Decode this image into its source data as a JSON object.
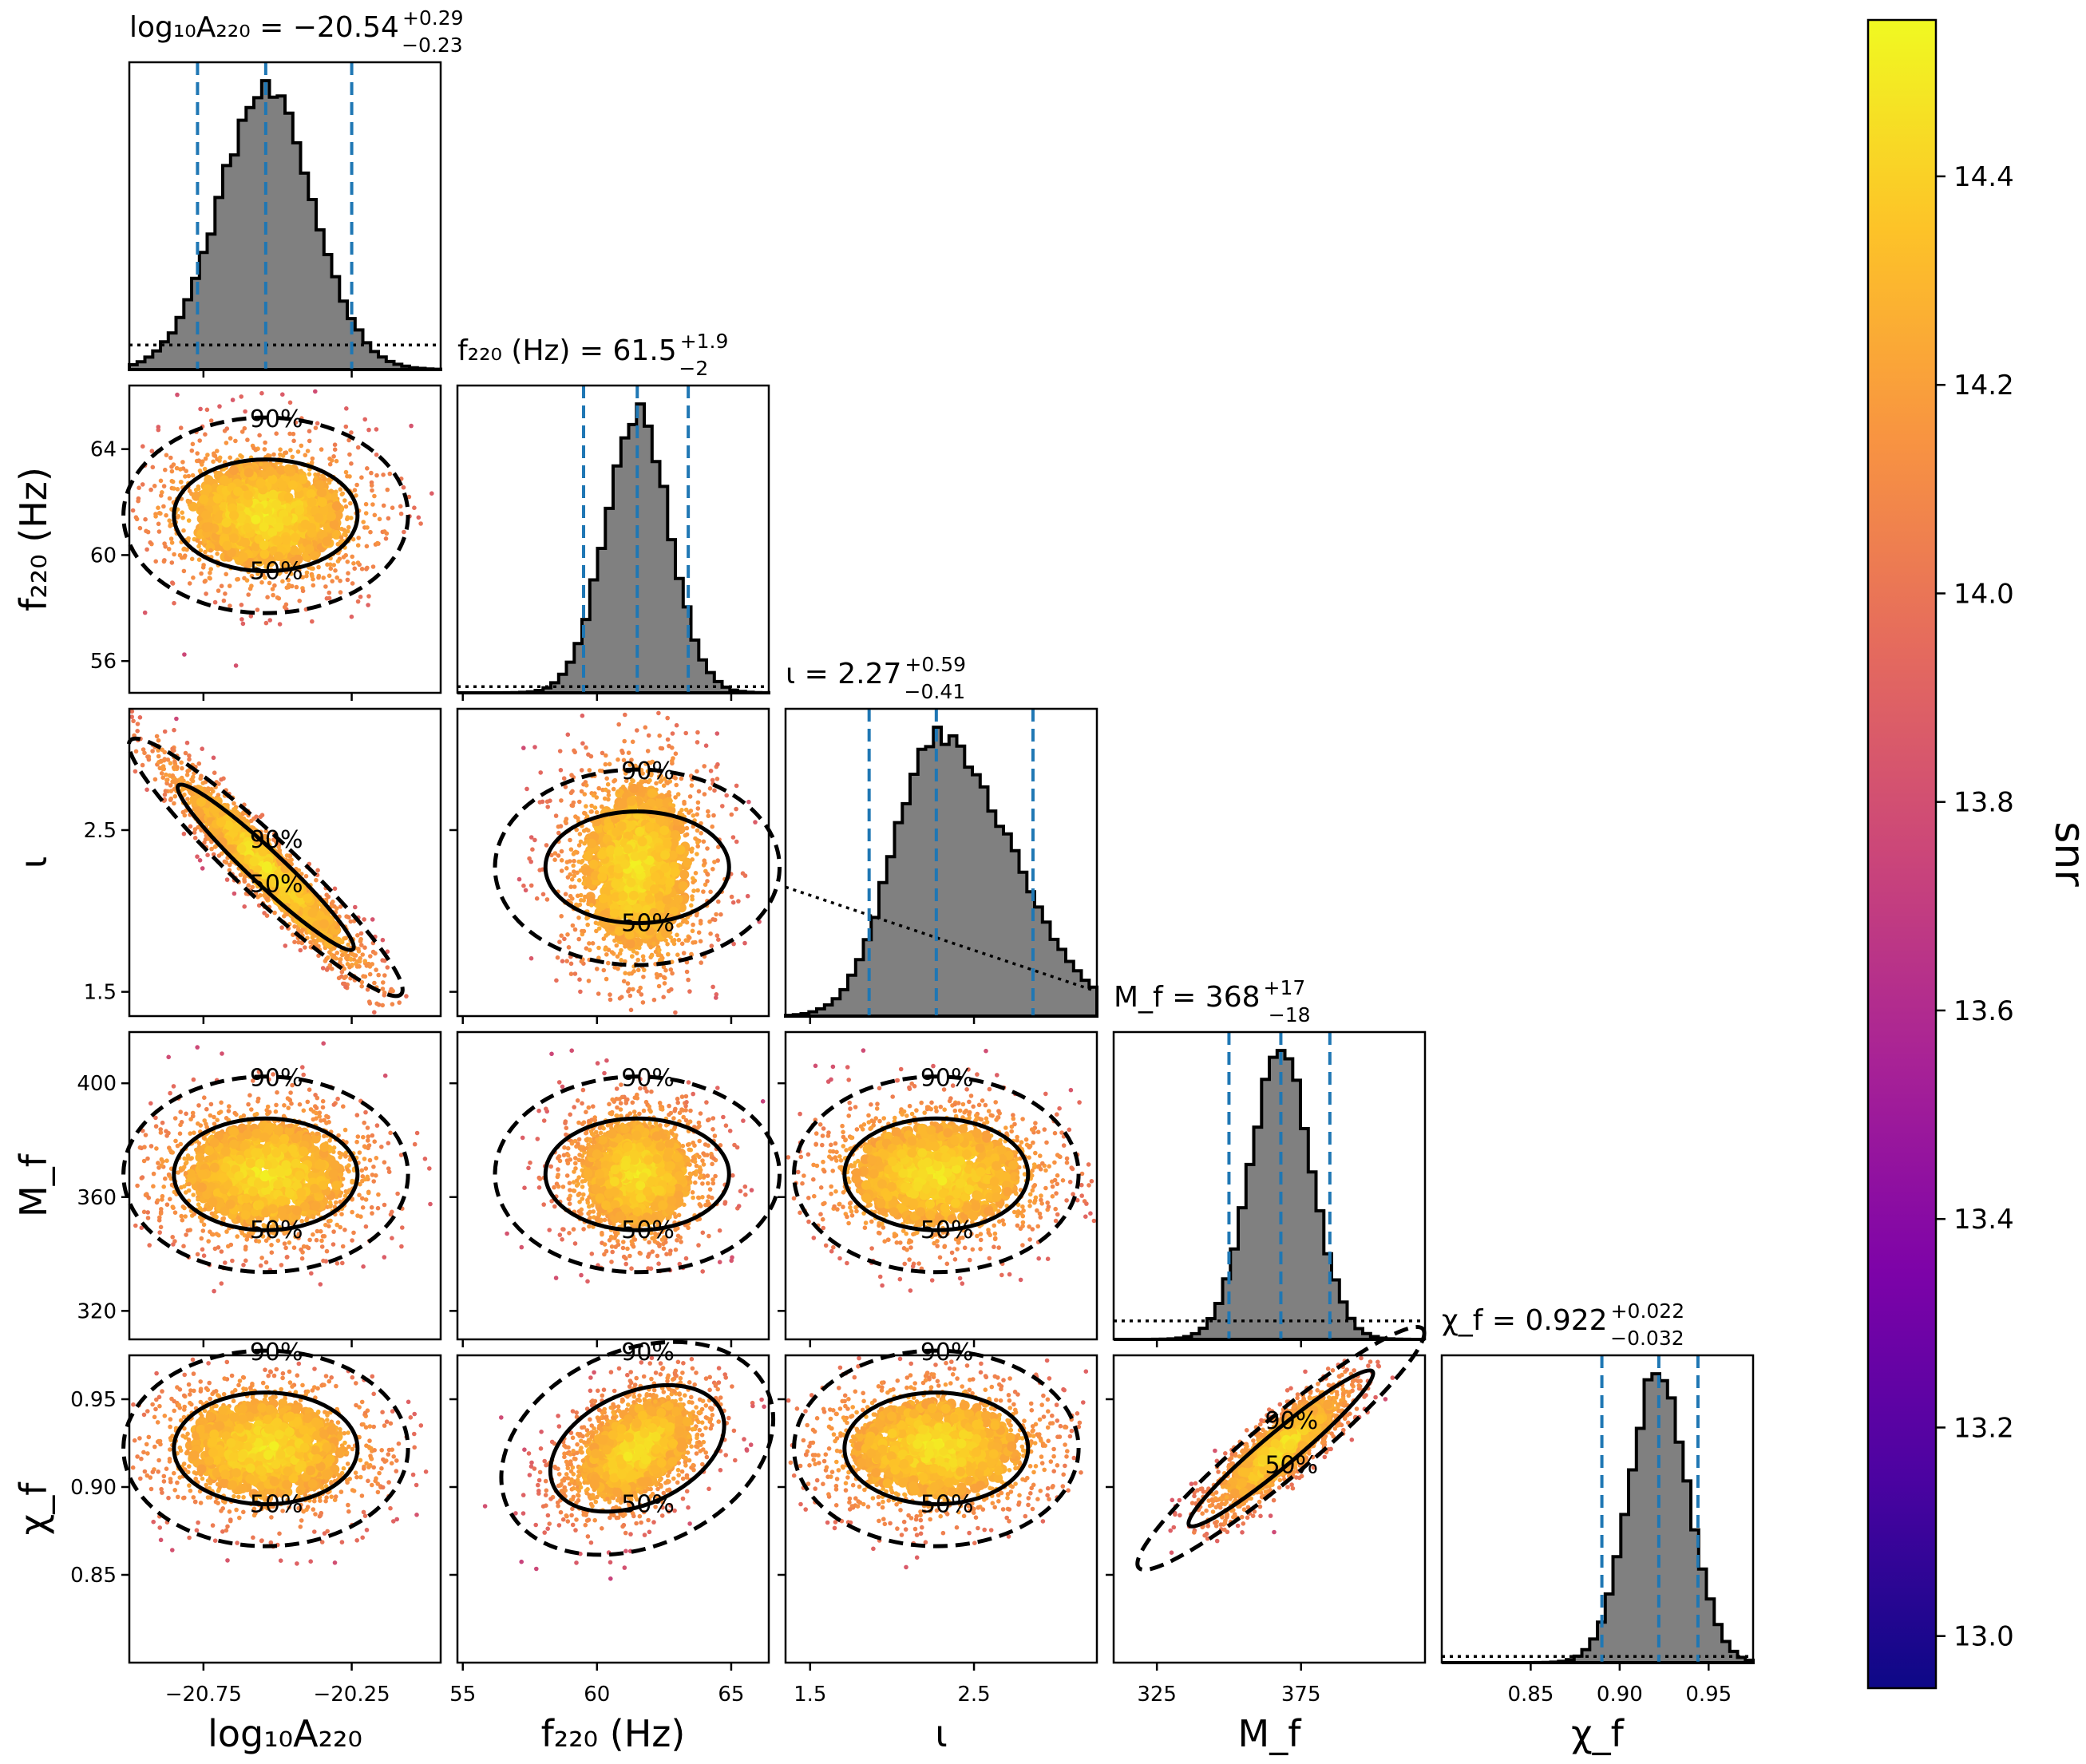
{
  "chart_data": {
    "type": "scatter",
    "subtype": "corner-plot",
    "parameters": [
      {
        "key": "logA",
        "label": "log₁₀A₂₂₀",
        "title_prefix": "log₁₀A₂₂₀ = −20.54",
        "sup": "+0.29",
        "sub": "−0.23",
        "median": -20.54,
        "lo": -20.77,
        "hi": -20.25,
        "range": [
          -21.0,
          -19.95
        ],
        "ticks": [
          -20.75,
          -20.25
        ],
        "tick_labels": [
          "−20.75",
          "−20.25"
        ],
        "prior": [
          0.08,
          0.08
        ]
      },
      {
        "key": "f220",
        "label": "f₂₂₀ (Hz)",
        "title_prefix": "f₂₂₀ (Hz) = 61.5",
        "sup": "+1.9",
        "sub": "−2",
        "median": 61.5,
        "lo": 59.5,
        "hi": 63.4,
        "range": [
          54.8,
          66.4
        ],
        "ticks": [
          55,
          60,
          65
        ],
        "ticks_y": [
          56,
          60,
          64
        ],
        "tick_labels": [
          "55",
          "60",
          "65"
        ],
        "tick_labels_y": [
          "56",
          "60",
          "64"
        ],
        "prior": [
          0.02,
          0.02
        ]
      },
      {
        "key": "iota",
        "label": "ι",
        "title_prefix": "ι = 2.27",
        "sup": "+0.59",
        "sub": "−0.41",
        "median": 2.27,
        "lo": 1.86,
        "hi": 2.86,
        "range": [
          1.35,
          3.25
        ],
        "ticks": [
          1.5,
          2.5
        ],
        "tick_labels": [
          "1.5",
          "2.5"
        ],
        "prior": [
          0.42,
          0.08
        ]
      },
      {
        "key": "Mf",
        "label": "M_f",
        "title_prefix": "M_f = 368",
        "sup": "+17",
        "sub": "−18",
        "median": 368,
        "lo": 350,
        "hi": 385,
        "range": [
          310,
          418
        ],
        "ticks": [
          325,
          375
        ],
        "ticks_y": [
          320,
          360,
          400
        ],
        "tick_labels": [
          "325",
          "375"
        ],
        "tick_labels_y": [
          "320",
          "360",
          "400"
        ],
        "prior": [
          0.06,
          0.06
        ]
      },
      {
        "key": "chif",
        "label": "χ_f",
        "title_prefix": "χ_f = 0.922",
        "sup": "+0.022",
        "sub": "−0.032",
        "median": 0.922,
        "lo": 0.89,
        "hi": 0.944,
        "range": [
          0.8,
          0.975
        ],
        "ticks": [
          0.85,
          0.9,
          0.95
        ],
        "tick_labels": [
          "0.85",
          "0.90",
          "0.95"
        ],
        "prior": [
          0.02,
          0.02
        ]
      }
    ],
    "correlations": [
      [
        1,
        0,
        0,
        0,
        0
      ],
      [
        -0.05,
        1,
        0,
        0,
        0
      ],
      [
        -0.95,
        0.0,
        1,
        0,
        0
      ],
      [
        0.0,
        0.0,
        0.0,
        1,
        0
      ],
      [
        -0.05,
        0.45,
        0.0,
        0.85,
        1
      ]
    ],
    "contour_labels": [
      "50%",
      "90%"
    ],
    "colorbar": {
      "label": "snr",
      "min": 12.95,
      "max": 14.55,
      "ticks": [
        13.0,
        13.2,
        13.4,
        13.6,
        13.8,
        14.0,
        14.2,
        14.4
      ],
      "tick_labels": [
        "13.0",
        "13.2",
        "13.4",
        "13.6",
        "13.8",
        "14.0",
        "14.2",
        "14.4"
      ],
      "colormap": "plasma"
    },
    "colors": {
      "quantile_line": "#1f77b4",
      "hist_fill": "#808080",
      "contour": "#000000"
    }
  }
}
